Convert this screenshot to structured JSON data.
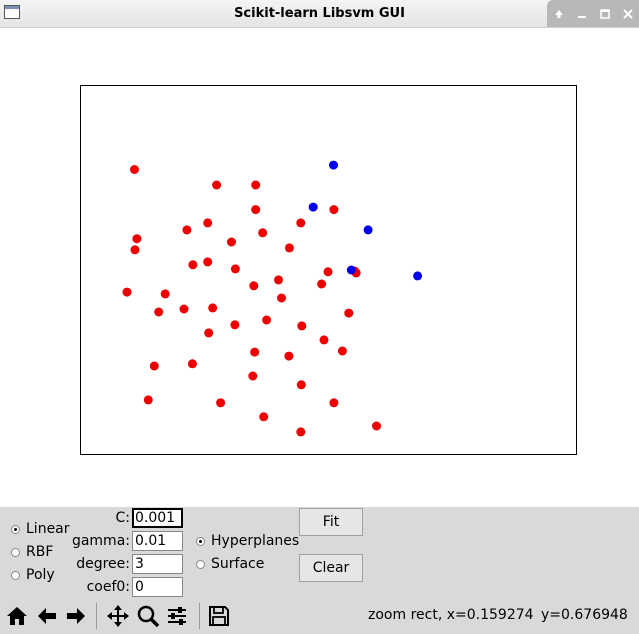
{
  "window": {
    "title": "Scikit-learn Libsvm GUI"
  },
  "plot": {
    "xlim": [
      0,
      1
    ],
    "ylim": [
      0,
      1
    ],
    "points": [
      {
        "x": 0.108,
        "y": 0.773,
        "c": "red"
      },
      {
        "x": 0.274,
        "y": 0.731,
        "c": "red"
      },
      {
        "x": 0.353,
        "y": 0.731,
        "c": "red"
      },
      {
        "x": 0.353,
        "y": 0.664,
        "c": "red"
      },
      {
        "x": 0.256,
        "y": 0.628,
        "c": "red"
      },
      {
        "x": 0.214,
        "y": 0.609,
        "c": "red"
      },
      {
        "x": 0.113,
        "y": 0.585,
        "c": "red"
      },
      {
        "x": 0.109,
        "y": 0.555,
        "c": "red"
      },
      {
        "x": 0.304,
        "y": 0.576,
        "c": "red"
      },
      {
        "x": 0.367,
        "y": 0.601,
        "c": "red"
      },
      {
        "x": 0.444,
        "y": 0.628,
        "c": "red"
      },
      {
        "x": 0.511,
        "y": 0.664,
        "c": "red"
      },
      {
        "x": 0.421,
        "y": 0.56,
        "c": "red"
      },
      {
        "x": 0.226,
        "y": 0.514,
        "c": "red"
      },
      {
        "x": 0.256,
        "y": 0.522,
        "c": "red"
      },
      {
        "x": 0.312,
        "y": 0.503,
        "c": "red"
      },
      {
        "x": 0.399,
        "y": 0.473,
        "c": "red"
      },
      {
        "x": 0.349,
        "y": 0.457,
        "c": "red"
      },
      {
        "x": 0.486,
        "y": 0.462,
        "c": "red"
      },
      {
        "x": 0.499,
        "y": 0.495,
        "c": "red"
      },
      {
        "x": 0.556,
        "y": 0.492,
        "c": "red"
      },
      {
        "x": 0.093,
        "y": 0.44,
        "c": "red"
      },
      {
        "x": 0.17,
        "y": 0.435,
        "c": "red"
      },
      {
        "x": 0.405,
        "y": 0.424,
        "c": "red"
      },
      {
        "x": 0.157,
        "y": 0.386,
        "c": "red"
      },
      {
        "x": 0.208,
        "y": 0.394,
        "c": "red"
      },
      {
        "x": 0.266,
        "y": 0.397,
        "c": "red"
      },
      {
        "x": 0.541,
        "y": 0.383,
        "c": "red"
      },
      {
        "x": 0.375,
        "y": 0.364,
        "c": "red"
      },
      {
        "x": 0.311,
        "y": 0.351,
        "c": "red"
      },
      {
        "x": 0.446,
        "y": 0.348,
        "c": "red"
      },
      {
        "x": 0.258,
        "y": 0.329,
        "c": "red"
      },
      {
        "x": 0.491,
        "y": 0.31,
        "c": "red"
      },
      {
        "x": 0.351,
        "y": 0.277,
        "c": "red"
      },
      {
        "x": 0.42,
        "y": 0.266,
        "c": "red"
      },
      {
        "x": 0.528,
        "y": 0.28,
        "c": "red"
      },
      {
        "x": 0.148,
        "y": 0.239,
        "c": "red"
      },
      {
        "x": 0.225,
        "y": 0.245,
        "c": "red"
      },
      {
        "x": 0.347,
        "y": 0.212,
        "c": "red"
      },
      {
        "x": 0.445,
        "y": 0.188,
        "c": "red"
      },
      {
        "x": 0.136,
        "y": 0.147,
        "c": "red"
      },
      {
        "x": 0.282,
        "y": 0.139,
        "c": "red"
      },
      {
        "x": 0.369,
        "y": 0.101,
        "c": "red"
      },
      {
        "x": 0.511,
        "y": 0.139,
        "c": "red"
      },
      {
        "x": 0.597,
        "y": 0.076,
        "c": "red"
      },
      {
        "x": 0.444,
        "y": 0.06,
        "c": "red"
      },
      {
        "x": 0.553,
        "y": 0.497,
        "c": "red"
      },
      {
        "x": 0.51,
        "y": 0.785,
        "c": "blue"
      },
      {
        "x": 0.469,
        "y": 0.671,
        "c": "blue"
      },
      {
        "x": 0.58,
        "y": 0.609,
        "c": "blue"
      },
      {
        "x": 0.546,
        "y": 0.5,
        "c": "blue"
      },
      {
        "x": 0.68,
        "y": 0.484,
        "c": "blue"
      }
    ],
    "colors": {
      "red": "#ee0000",
      "blue": "#0000ee"
    }
  },
  "kernel": {
    "options": [
      "Linear",
      "RBF",
      "Poly"
    ],
    "selected": "Linear"
  },
  "params": {
    "c_label": "C:",
    "c_value": "0.001",
    "gamma_label": "gamma:",
    "gamma_value": "0.01",
    "degree_label": "degree:",
    "degree_value": "3",
    "coef0_label": "coef0:",
    "coef0_value": "0"
  },
  "display": {
    "options": [
      "Hyperplanes",
      "Surface"
    ],
    "selected": "Hyperplanes"
  },
  "buttons": {
    "fit": "Fit",
    "clear": "Clear"
  },
  "toolbar": {
    "icons": [
      "home-icon",
      "back-arrow-icon",
      "forward-arrow-icon",
      "pan-icon",
      "zoom-icon",
      "subplots-icon",
      "save-icon"
    ]
  },
  "status": {
    "mode": "zoom rect",
    "x": "x=0.159274",
    "y": "y=0.676948"
  }
}
